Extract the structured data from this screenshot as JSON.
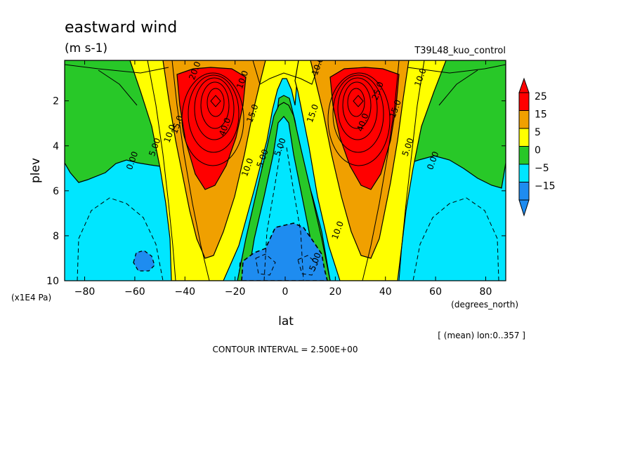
{
  "chart_data": {
    "type": "contour",
    "title": "eastward wind",
    "units": "(m s-1)",
    "experiment": "T39L48_kuo_control",
    "xlabel": "lat",
    "xunits": "(degrees_north)",
    "ylabel": "plev",
    "yunits": "(x1E4 Pa)",
    "xlim": [
      -88,
      88
    ],
    "ylim": [
      0.2,
      10
    ],
    "y_inverted": true,
    "xticks": [
      -80,
      -60,
      -40,
      -20,
      0,
      20,
      40,
      60,
      80
    ],
    "yticks": [
      2,
      4,
      6,
      8,
      10
    ],
    "contour_interval_text": "CONTOUR INTERVAL = 2.500E+00",
    "contour_interval": 2.5,
    "averaging_note": "[ (mean) lon:0..357 ]",
    "colorbar": {
      "labels": [
        "25",
        "15",
        "5",
        "0",
        "−5",
        "−15"
      ],
      "levels": [
        -15,
        -5,
        0,
        5,
        15,
        25
      ],
      "colors": [
        "#1e8cf0",
        "#00e6ff",
        "#28c828",
        "#ffff00",
        "#f0a000",
        "#ff0000"
      ],
      "extend": "both"
    },
    "contour_labels": [
      {
        "text": "20.0",
        "x": -35,
        "y": 0.7
      },
      {
        "text": "15.0",
        "x": -42,
        "y": 3.1
      },
      {
        "text": "10.0",
        "x": -45,
        "y": 3.5
      },
      {
        "text": "5.00",
        "x": -51,
        "y": 4.1
      },
      {
        "text": "0.00",
        "x": -60,
        "y": 4.7
      },
      {
        "text": "10.0",
        "x": -16,
        "y": 1.1
      },
      {
        "text": "15.0",
        "x": -12,
        "y": 2.6
      },
      {
        "text": "40.0",
        "x": -23,
        "y": 3.2
      },
      {
        "text": "10.0",
        "x": -14,
        "y": 5.0
      },
      {
        "text": "5.00",
        "x": -8,
        "y": 4.6
      },
      {
        "text": "5.00",
        "x": -1,
        "y": 4.1
      },
      {
        "text": "10.0",
        "x": 14,
        "y": 0.5
      },
      {
        "text": "15.0",
        "x": 12,
        "y": 2.6
      },
      {
        "text": "40.0",
        "x": 32,
        "y": 3.0
      },
      {
        "text": "25.0",
        "x": 38,
        "y": 1.6
      },
      {
        "text": "10.0",
        "x": 55,
        "y": 1.0
      },
      {
        "text": "15.0",
        "x": 45,
        "y": 2.4
      },
      {
        "text": "10.0",
        "x": 22,
        "y": 7.8
      },
      {
        "text": "5.00",
        "x": 13,
        "y": 9.2
      },
      {
        "text": "5.00",
        "x": 50,
        "y": 4.1
      },
      {
        "text": "0.00",
        "x": 60,
        "y": 4.7
      }
    ]
  }
}
